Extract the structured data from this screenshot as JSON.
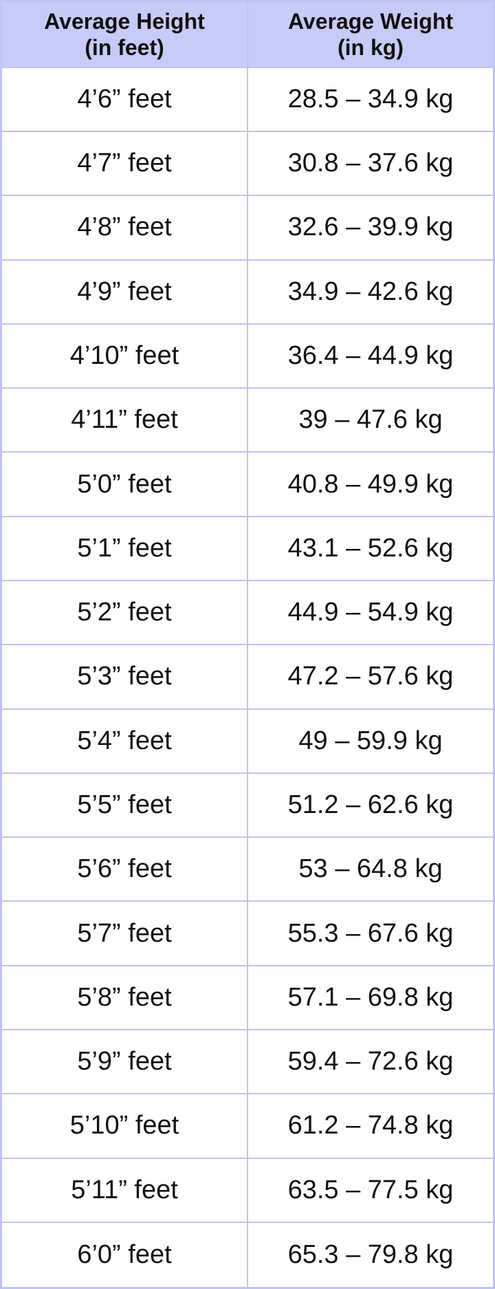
{
  "table": {
    "header": [
      [
        "Average Height",
        "(in feet)"
      ],
      [
        "Average Weight",
        "(in kg)"
      ]
    ],
    "rows": [
      [
        "4’6” feet",
        "28.5 – 34.9 kg"
      ],
      [
        "4’7” feet",
        "30.8 – 37.6 kg"
      ],
      [
        "4’8” feet",
        "32.6 – 39.9 kg"
      ],
      [
        "4’9” feet",
        "34.9 – 42.6 kg"
      ],
      [
        "4’10” feet",
        "36.4 – 44.9 kg"
      ],
      [
        "4’11” feet",
        "39 – 47.6 kg"
      ],
      [
        "5’0” feet",
        "40.8 – 49.9 kg"
      ],
      [
        "5’1” feet",
        "43.1 – 52.6 kg"
      ],
      [
        "5’2” feet",
        "44.9 – 54.9 kg"
      ],
      [
        "5’3” feet",
        "47.2 – 57.6 kg"
      ],
      [
        "5’4” feet",
        "49 – 59.9 kg"
      ],
      [
        "5’5” feet",
        "51.2 – 62.6 kg"
      ],
      [
        "5’6” feet",
        "53 – 64.8 kg"
      ],
      [
        "5’7” feet",
        "55.3 – 67.6 kg"
      ],
      [
        "5’8” feet",
        "57.1 – 69.8 kg"
      ],
      [
        "5’9” feet",
        "59.4 – 72.6 kg"
      ],
      [
        "5’10” feet",
        "61.2 – 74.8 kg"
      ],
      [
        "5’11” feet",
        "63.5 – 77.5 kg"
      ],
      [
        "6’0” feet",
        "65.3 – 79.8 kg"
      ]
    ]
  }
}
